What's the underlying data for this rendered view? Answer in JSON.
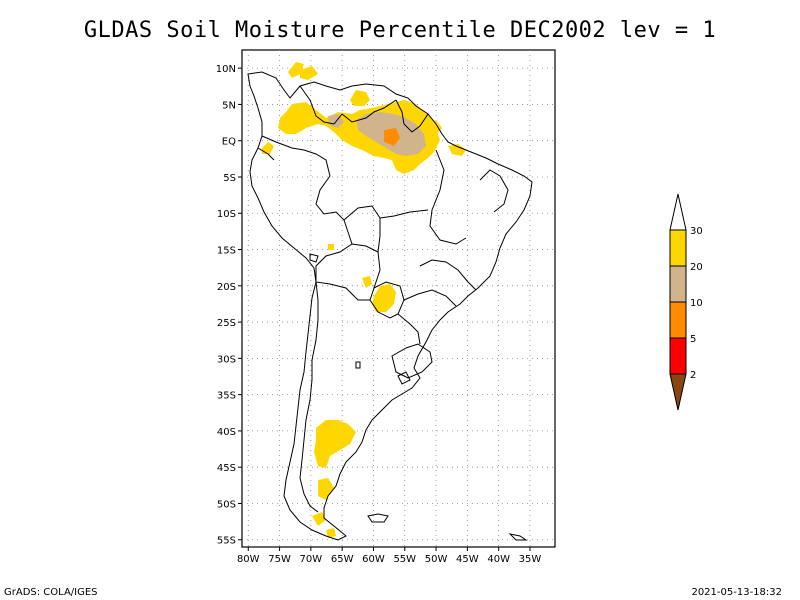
{
  "title": "GLDAS Soil Moisture Percentile DEC2002 lev = 1",
  "footer": {
    "left": "GrADS: COLA/IGES",
    "right": "2021-05-13-18:32"
  },
  "map": {
    "region": "South America",
    "lon_range": [
      -81,
      -31
    ],
    "lat_range": [
      -56,
      12.5
    ],
    "lon_ticks": [
      "80W",
      "75W",
      "70W",
      "65W",
      "60W",
      "55W",
      "50W",
      "45W",
      "40W",
      "35W"
    ],
    "lat_ticks": [
      "10N",
      "5N",
      "EQ",
      "5S",
      "10S",
      "15S",
      "20S",
      "25S",
      "30S",
      "35S",
      "40S",
      "45S",
      "50S",
      "55S"
    ],
    "grid": "dotted"
  },
  "legend": {
    "labels": [
      "30",
      "20",
      "10",
      "5",
      "2"
    ],
    "colors": [
      "#ffffff",
      "#ffd700",
      "#d2b48c",
      "#ff8c00",
      "#ff0000",
      "#8b4513"
    ]
  },
  "colors": {
    "lt30": "#ffd700",
    "lt20": "#d2b48c",
    "lt10": "#ff8c00",
    "lt5": "#ff0000",
    "lt2": "#8b4513"
  }
}
